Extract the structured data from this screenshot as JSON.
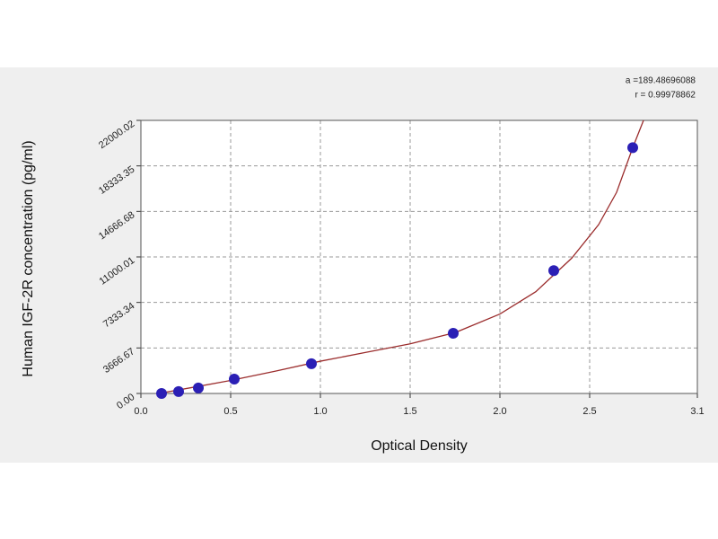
{
  "chart_data": {
    "type": "scatter",
    "xlabel": "Optical Density",
    "ylabel": "Human IGF-2R concentration (pg/ml)",
    "annotations": [
      "a =189.48696088",
      "r = 0.99978862"
    ],
    "xlim": [
      0,
      3.1
    ],
    "ylim": [
      0,
      22000.02
    ],
    "xticks": [
      {
        "value": 0,
        "label": "0.0"
      },
      0.5,
      {
        "value": 1,
        "label": "1.0"
      },
      1.5,
      {
        "value": 2,
        "label": "2.0"
      },
      2.5,
      3.1
    ],
    "yticks": [
      {
        "value": 0,
        "label": "0.00"
      },
      3666.67,
      7333.34,
      11000.01,
      14666.68,
      18333.35,
      22000.02
    ],
    "grid": true,
    "series": [
      {
        "type": "scatter",
        "color": "#2b1fb5",
        "x": [
          0.115,
          0.21,
          0.32,
          0.52,
          0.95,
          1.74,
          2.3,
          2.74
        ],
        "values": [
          0,
          150,
          440,
          1160,
          2400,
          4850,
          9900,
          19800
        ]
      },
      {
        "type": "line",
        "color": "#9b2d2d",
        "x": [
          0.1,
          0.3,
          0.5,
          0.75,
          1.0,
          1.25,
          1.5,
          1.75,
          2.0,
          2.2,
          2.4,
          2.55,
          2.65,
          2.74,
          2.8
        ],
        "values": [
          0,
          520,
          1050,
          1800,
          2600,
          3300,
          4000,
          4900,
          6400,
          8200,
          10900,
          13600,
          16200,
          19800,
          22000
        ]
      }
    ]
  }
}
